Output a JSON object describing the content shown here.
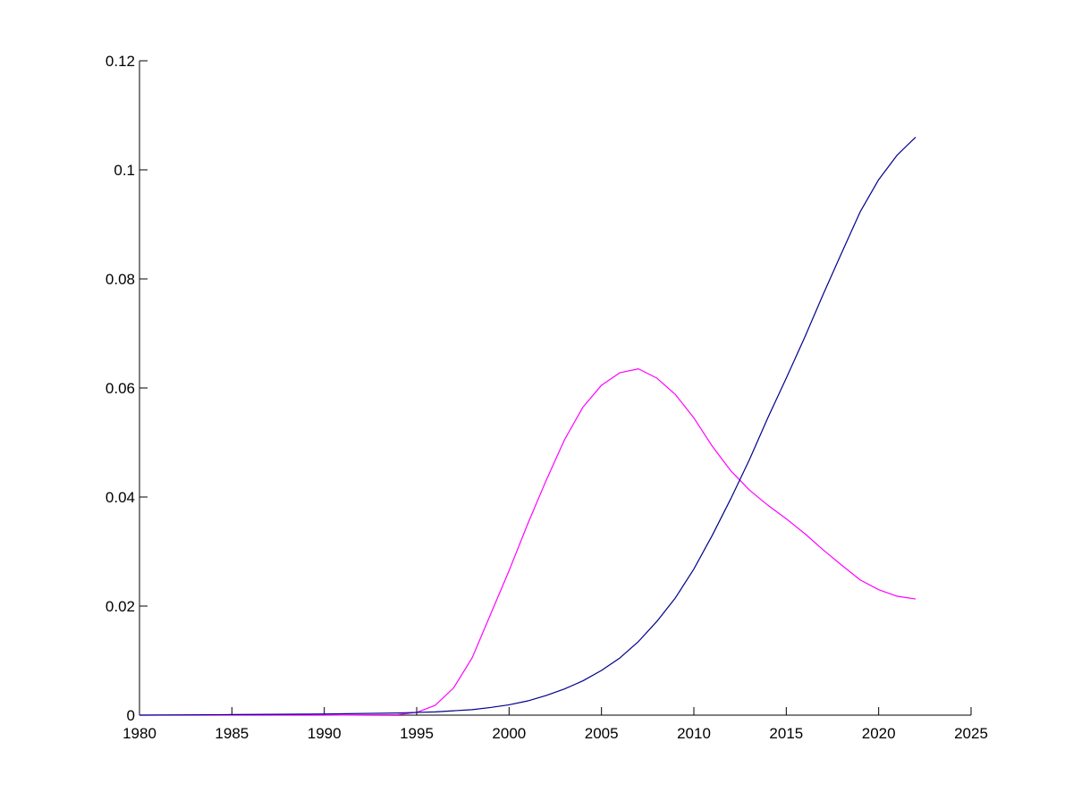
{
  "chart_data": {
    "type": "line",
    "title": "",
    "xlabel": "",
    "ylabel": "",
    "xlim": [
      1980,
      2025
    ],
    "ylim": [
      0,
      0.12
    ],
    "xticks": [
      1980,
      1985,
      1990,
      1995,
      2000,
      2005,
      2010,
      2015,
      2020,
      2025
    ],
    "xtick_labels": [
      "1980",
      "1985",
      "1990",
      "1995",
      "2000",
      "2005",
      "2010",
      "2015",
      "2020",
      "2025"
    ],
    "yticks": [
      0,
      0.02,
      0.04,
      0.06,
      0.08,
      0.1,
      0.12
    ],
    "ytick_labels": [
      "0",
      "0.02",
      "0.04",
      "0.06",
      "0.08",
      "0.1",
      "0.12"
    ],
    "grid": false,
    "legend": "none",
    "series": [
      {
        "color": "#ff00ff",
        "x": [
          1980,
          1985,
          1990,
          1994,
          1995,
          1996,
          1997,
          1998,
          1999,
          2000,
          2001,
          2002,
          2003,
          2004,
          2005,
          2006,
          2007,
          2008,
          2009,
          2010,
          2011,
          2012,
          2013,
          2014,
          2015,
          2016,
          2017,
          2018,
          2019,
          2020,
          2021,
          2022
        ],
        "y": [
          0,
          0,
          0,
          0.0001,
          0.0005,
          0.0018,
          0.005,
          0.0105,
          0.0185,
          0.0265,
          0.035,
          0.043,
          0.0505,
          0.0565,
          0.0605,
          0.0628,
          0.0635,
          0.0618,
          0.0588,
          0.0545,
          0.0493,
          0.0448,
          0.0413,
          0.0385,
          0.036,
          0.0333,
          0.0303,
          0.0275,
          0.0248,
          0.023,
          0.0218,
          0.0213
        ]
      },
      {
        "color": "#00008b",
        "x": [
          1980,
          1985,
          1990,
          1994,
          1995,
          1996,
          1997,
          1998,
          1999,
          2000,
          2001,
          2002,
          2003,
          2004,
          2005,
          2006,
          2007,
          2008,
          2009,
          2010,
          2011,
          2012,
          2013,
          2014,
          2015,
          2016,
          2017,
          2018,
          2019,
          2020,
          2021,
          2022
        ],
        "y": [
          0,
          0.0001,
          0.0002,
          0.0004,
          0.0005,
          0.0006,
          0.0008,
          0.001,
          0.0014,
          0.0019,
          0.0026,
          0.0036,
          0.0048,
          0.0063,
          0.0082,
          0.0105,
          0.0135,
          0.0172,
          0.0215,
          0.0268,
          0.033,
          0.0397,
          0.0468,
          0.0545,
          0.0618,
          0.0693,
          0.0772,
          0.0848,
          0.0923,
          0.0982,
          0.1027,
          0.106
        ]
      }
    ]
  }
}
